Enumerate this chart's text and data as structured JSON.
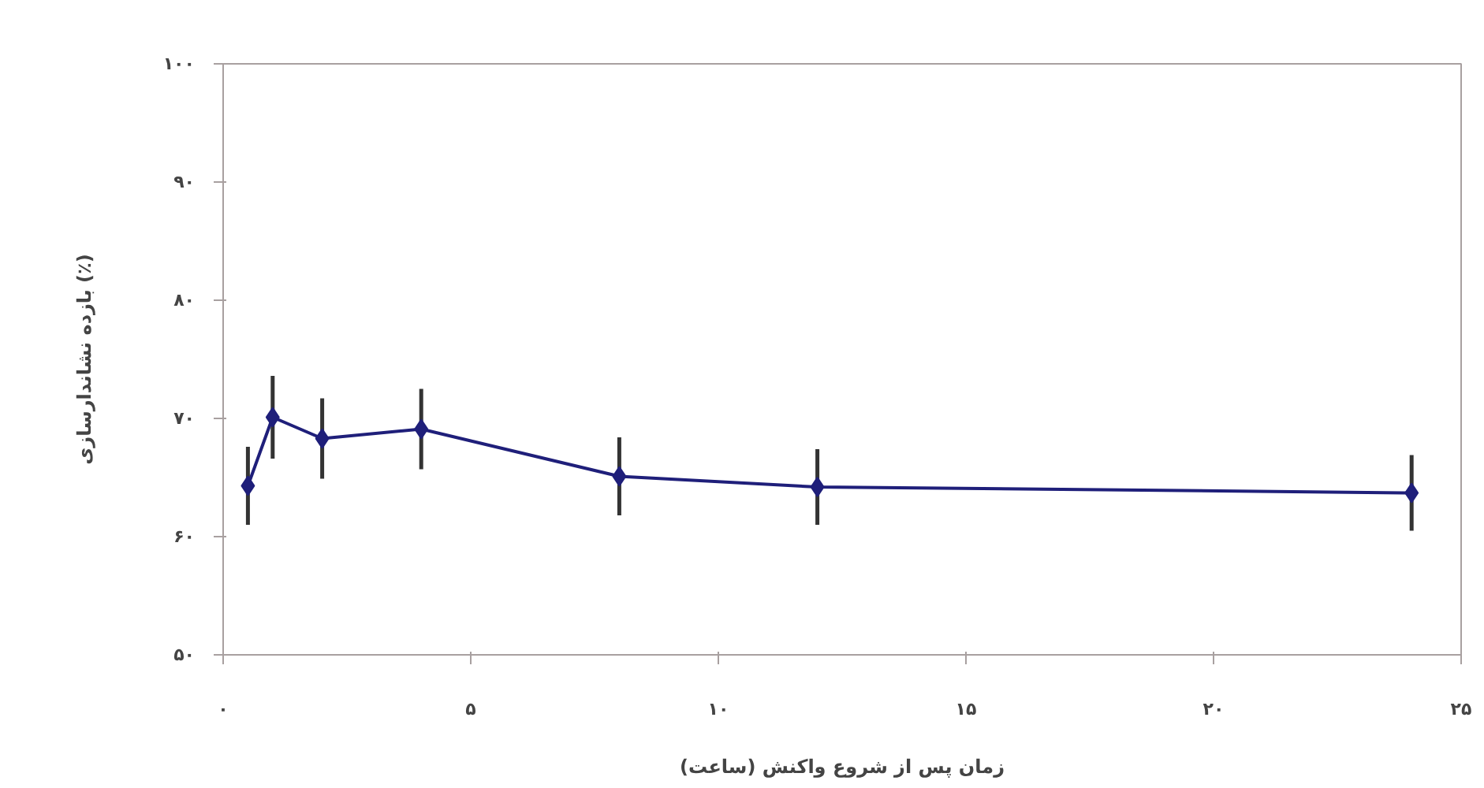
{
  "chart_data": {
    "type": "line",
    "xlabel": "زمان پس از شروع واکنش (ساعت)",
    "ylabel": "بازده نشاندارسازی (٪)",
    "x": [
      0.5,
      1,
      2,
      4,
      8,
      12,
      24
    ],
    "series": [
      {
        "color": "#1f1f7a",
        "values": [
          64.3,
          70.1,
          68.3,
          69.1,
          65.1,
          64.2,
          63.7
        ],
        "errors": [
          3.3,
          3.5,
          3.4,
          3.4,
          3.3,
          3.2,
          3.2
        ]
      }
    ],
    "xlim": [
      0,
      25
    ],
    "ylim": [
      50,
      100
    ],
    "xticks": [
      {
        "value": 0,
        "label": "۰"
      },
      {
        "value": 5,
        "label": "۵"
      },
      {
        "value": 10,
        "label": "۱۰"
      },
      {
        "value": 15,
        "label": "۱۵"
      },
      {
        "value": 20,
        "label": "۲۰"
      },
      {
        "value": 25,
        "label": "۲۵"
      }
    ],
    "yticks": [
      {
        "value": 50,
        "label": "۵۰"
      },
      {
        "value": 60,
        "label": "۶۰"
      },
      {
        "value": 70,
        "label": "۷۰"
      },
      {
        "value": 80,
        "label": "۸۰"
      },
      {
        "value": 90,
        "label": "۹۰"
      },
      {
        "value": 100,
        "label": "۱۰۰"
      }
    ],
    "grid": false,
    "marker": "diamond",
    "line_style": "solid"
  }
}
